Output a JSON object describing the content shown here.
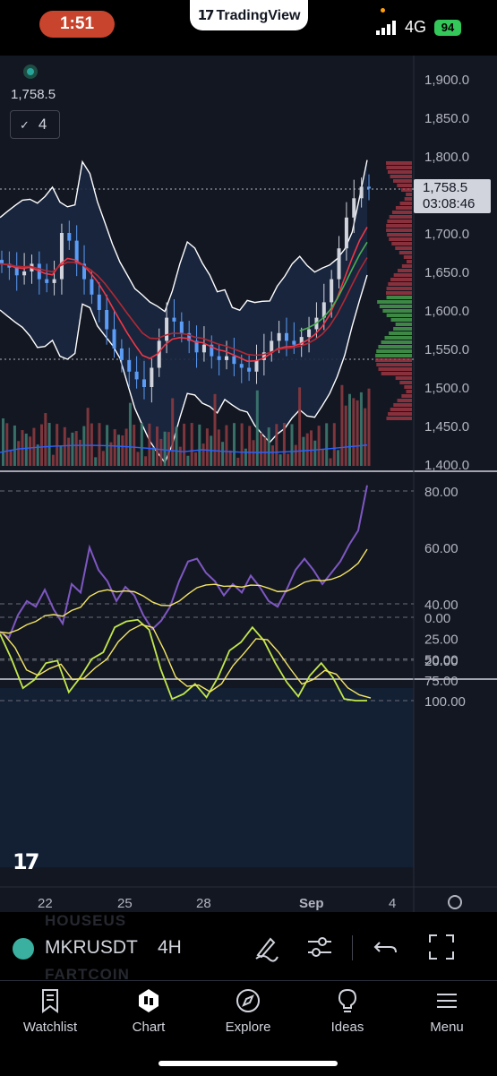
{
  "status_bar": {
    "time": "1:51",
    "app_name": "TradingView",
    "network": "4G",
    "battery": "94"
  },
  "chart": {
    "symbol": "MKRUSDT",
    "interval": "4H",
    "legend_value": "1,758.5",
    "indicator_count": "4",
    "last_price": "1,758.5",
    "countdown": "03:08:46",
    "price_axis": [
      "1,900.0",
      "1,850.0",
      "1,800.0",
      "1,700.0",
      "1,650.0",
      "1,600.0",
      "1,550.0",
      "1,500.0",
      "1,450.0",
      "1,400.0"
    ],
    "rsi_axis": [
      "80.00",
      "60.00",
      "40.00",
      "20.00"
    ],
    "stoch_axis": [
      "100.00",
      "75.00",
      "50.00",
      "25.00",
      "0.00"
    ],
    "time_axis": [
      "22",
      "25",
      "28",
      "Sep",
      "4"
    ],
    "watermark": "17",
    "colors": {
      "up": "#5b9cf6",
      "down": "#d1d4dc",
      "rsi": "#7e57c2",
      "rsi_ma": "#f5e663",
      "stoch_k": "#c3e84b",
      "stoch_d": "#f5e663",
      "ema_fast": "#f23645",
      "ema_slow": "#4caf50"
    }
  },
  "chart_data": [
    {
      "type": "line",
      "title": "",
      "x": [
        0,
        1,
        2,
        3,
        4,
        5,
        6,
        7,
        8,
        9,
        10,
        11,
        12,
        13,
        14,
        15,
        16,
        17,
        18,
        19,
        20,
        21,
        22,
        23,
        24,
        25,
        26,
        27,
        28,
        29,
        30,
        31,
        32,
        33,
        34,
        35,
        36,
        37,
        38,
        39,
        40,
        41,
        42,
        43,
        44,
        45,
        46,
        47,
        48,
        49
      ],
      "series": [
        {
          "name": "",
          "values": [
            1660,
            1655,
            1645,
            1650,
            1660,
            1640,
            1635,
            1640,
            1700,
            1690,
            1660,
            1640,
            1620,
            1600,
            1575,
            1550,
            1535,
            1520,
            1510,
            1500,
            1525,
            1560,
            1590,
            1585,
            1570,
            1560,
            1545,
            1555,
            1540,
            1535,
            1540,
            1530,
            1525,
            1520,
            1535,
            1545,
            1560,
            1570,
            1560,
            1555,
            1565,
            1575,
            1590,
            1610,
            1640,
            1680,
            1720,
            1745,
            1760,
            1758.5
          ]
        }
      ],
      "ylim": [
        1400,
        1900
      ]
    },
    {
      "type": "line",
      "title": "",
      "series": [
        {
          "name": "",
          "values": [
            30,
            28,
            36,
            41,
            39,
            45,
            38,
            33,
            47,
            44,
            60,
            52,
            48,
            41,
            46,
            43,
            36,
            31,
            34,
            39,
            48,
            55,
            56,
            51,
            48,
            43,
            47,
            44,
            50,
            46,
            41,
            39,
            45,
            52,
            56,
            52,
            47,
            51,
            55,
            61,
            66,
            82
          ]
        }
      ],
      "ylim": [
        10,
        90
      ]
    },
    {
      "type": "line",
      "title": "",
      "series": [
        {
          "name": "",
          "values": [
            20,
            50,
            85,
            75,
            55,
            52,
            90,
            72,
            50,
            42,
            12,
            5,
            3,
            15,
            62,
            98,
            92,
            80,
            96,
            72,
            40,
            30,
            12,
            28,
            55,
            78,
            95,
            70,
            55,
            72,
            98,
            100,
            100
          ]
        }
      ],
      "ylim": [
        -5,
        105
      ]
    }
  ],
  "nav": {
    "items": [
      "Watchlist",
      "Chart",
      "Explore",
      "Ideas",
      "Menu"
    ]
  },
  "toolbar": {
    "ghost_top": "HOUSEUS",
    "ghost_bottom": "FARTCOIN"
  }
}
